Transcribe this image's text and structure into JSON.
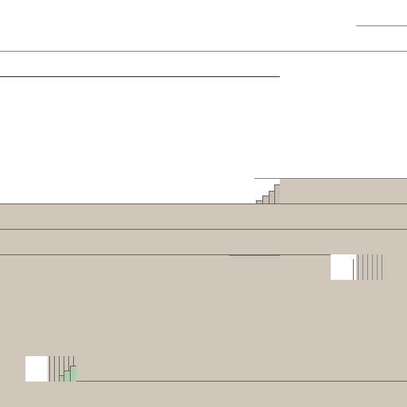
{
  "window": {
    "title": ""
  },
  "colors": {
    "background": "#ffffff",
    "surface": "#d0c7bb",
    "line": "#6b645e",
    "accent_green": "#a8d0a8"
  },
  "icons": {
    "gauge_1": "bar-gauge-icon",
    "gauge_2": "bar-gauge-icon"
  }
}
